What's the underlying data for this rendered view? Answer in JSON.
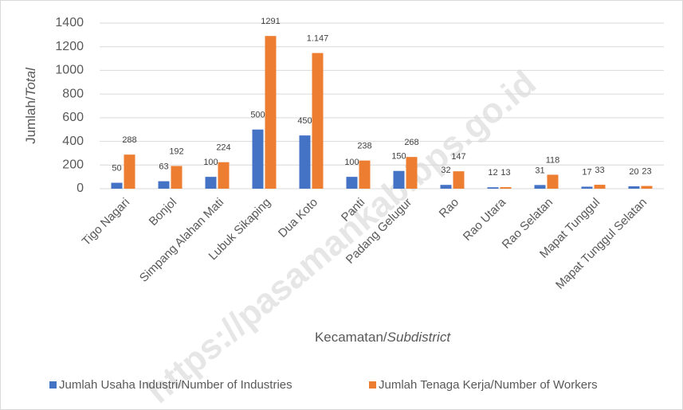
{
  "chart_data": {
    "type": "bar",
    "categories": [
      "Tigo Nagari",
      "Bonjol",
      "Simpang Alahan Mati",
      "Lubuk Sikaping",
      "Dua Koto",
      "Panti",
      "Padang Gelugur",
      "Rao",
      "Rao Utara",
      "Rao Selatan",
      "Mapat Tunggul",
      "Mapat Tunggul Selatan"
    ],
    "series": [
      {
        "name": "Jumlah Usaha Industri/Number of Industries",
        "color": "#4472c4",
        "values": [
          50,
          63,
          100,
          500,
          450,
          100,
          150,
          32,
          12,
          31,
          17,
          20
        ]
      },
      {
        "name": "Jumlah Tenaga Kerja/Number of Workers",
        "color": "#ed7d31",
        "values": [
          288,
          192,
          224,
          1291,
          1147,
          238,
          268,
          147,
          13,
          118,
          33,
          23
        ],
        "value_labels": [
          "288",
          "192",
          "224",
          "1291",
          "1.147",
          "238",
          "268",
          "147",
          "13",
          "118",
          "33",
          "23"
        ]
      }
    ],
    "ylabel": [
      "Jumlah/",
      "Total"
    ],
    "xlabel": [
      "Kecamatan/",
      "Subdistrict"
    ],
    "ylim": [
      0,
      1400
    ],
    "yticks": [
      0,
      200,
      400,
      600,
      800,
      1000,
      1200,
      1400
    ],
    "grid": true,
    "legend": "bottom",
    "watermark": "https://pasamankab.bps.go.id"
  }
}
